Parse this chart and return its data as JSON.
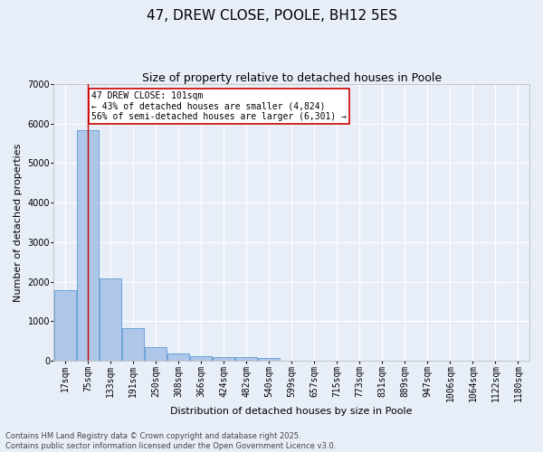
{
  "title": "47, DREW CLOSE, POOLE, BH12 5ES",
  "subtitle": "Size of property relative to detached houses in Poole",
  "xlabel": "Distribution of detached houses by size in Poole",
  "ylabel": "Number of detached properties",
  "categories": [
    "17sqm",
    "75sqm",
    "133sqm",
    "191sqm",
    "250sqm",
    "308sqm",
    "366sqm",
    "424sqm",
    "482sqm",
    "540sqm",
    "599sqm",
    "657sqm",
    "715sqm",
    "773sqm",
    "831sqm",
    "889sqm",
    "947sqm",
    "1006sqm",
    "1064sqm",
    "1122sqm",
    "1180sqm"
  ],
  "values": [
    1780,
    5840,
    2080,
    820,
    340,
    190,
    115,
    90,
    90,
    70,
    0,
    0,
    0,
    0,
    0,
    0,
    0,
    0,
    0,
    0,
    0
  ],
  "bar_color": "#aec6e8",
  "bar_edge_color": "#5b9bd5",
  "red_line_x": 1,
  "annotation_line1": "47 DREW CLOSE: 101sqm",
  "annotation_line2": "← 43% of detached houses are smaller (4,824)",
  "annotation_line3": "56% of semi-detached houses are larger (6,301) →",
  "annotation_box_color": "#ffffff",
  "annotation_box_edge_color": "#cc0000",
  "red_line_color": "#cc0000",
  "ylim": [
    0,
    7000
  ],
  "yticks": [
    0,
    1000,
    2000,
    3000,
    4000,
    5000,
    6000,
    7000
  ],
  "background_color": "#e8eef8",
  "grid_color": "#ffffff",
  "footer_line1": "Contains HM Land Registry data © Crown copyright and database right 2025.",
  "footer_line2": "Contains public sector information licensed under the Open Government Licence v3.0.",
  "title_fontsize": 11,
  "subtitle_fontsize": 9,
  "axis_label_fontsize": 8,
  "tick_fontsize": 7,
  "annotation_fontsize": 7,
  "footer_fontsize": 6
}
